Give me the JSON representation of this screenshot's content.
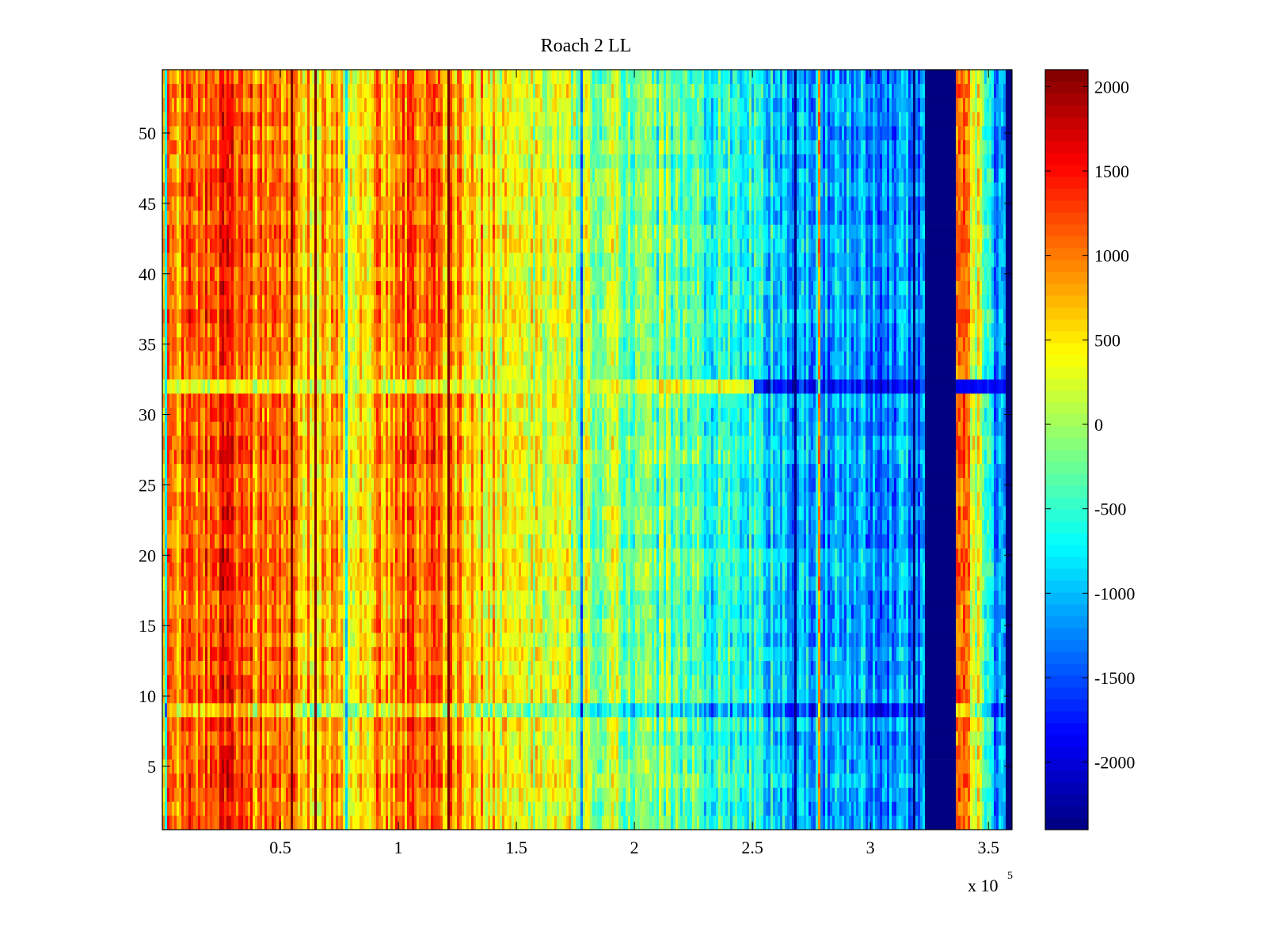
{
  "chart_data": {
    "type": "heatmap",
    "title": "Roach 2 LL",
    "xlabel": "",
    "ylabel": "",
    "x_range": [
      0,
      360000
    ],
    "y_range": [
      0.5,
      54.5
    ],
    "x_ticks": [
      {
        "value": 50000,
        "label": "0.5"
      },
      {
        "value": 100000,
        "label": "1"
      },
      {
        "value": 150000,
        "label": "1.5"
      },
      {
        "value": 200000,
        "label": "2"
      },
      {
        "value": 250000,
        "label": "2.5"
      },
      {
        "value": 300000,
        "label": "3"
      },
      {
        "value": 350000,
        "label": "3.5"
      }
    ],
    "x_exponent_label": "x 10",
    "x_exponent_power": "5",
    "y_ticks": [
      {
        "value": 5,
        "label": "5"
      },
      {
        "value": 10,
        "label": "10"
      },
      {
        "value": 15,
        "label": "15"
      },
      {
        "value": 20,
        "label": "20"
      },
      {
        "value": 25,
        "label": "25"
      },
      {
        "value": 30,
        "label": "30"
      },
      {
        "value": 35,
        "label": "35"
      },
      {
        "value": 40,
        "label": "40"
      },
      {
        "value": 45,
        "label": "45"
      },
      {
        "value": 50,
        "label": "50"
      }
    ],
    "colormap": "jet",
    "color_range": [
      -2400,
      2100
    ],
    "colorbar_ticks": [
      {
        "value": 2000,
        "label": "2000"
      },
      {
        "value": 1500,
        "label": "1500"
      },
      {
        "value": 1000,
        "label": "1000"
      },
      {
        "value": 500,
        "label": "500"
      },
      {
        "value": 0,
        "label": "0"
      },
      {
        "value": -500,
        "label": "-500"
      },
      {
        "value": -1000,
        "label": "-1000"
      },
      {
        "value": -1500,
        "label": "-1500"
      },
      {
        "value": -2000,
        "label": "-2000"
      }
    ],
    "column_profile": {
      "x": [
        0,
        15000,
        25000,
        40000,
        60000,
        80000,
        95000,
        110000,
        130000,
        150000,
        175000,
        200000,
        220000,
        250000,
        270000,
        290000,
        315000,
        320000
      ],
      "value": [
        800,
        1200,
        1300,
        1000,
        700,
        600,
        900,
        1150,
        700,
        450,
        150,
        -100,
        -400,
        -700,
        -1050,
        -1100,
        -1200,
        -1300
      ]
    },
    "saturated_band": {
      "x_start": 323000,
      "x_end": 336000,
      "value": -2400
    },
    "right_segment": {
      "x_start": 336000,
      "x_end": 357000,
      "column_values": [
        1100,
        200,
        -700,
        -1300
      ]
    },
    "right_edge_band": {
      "x_start": 357000,
      "x_end": 360000,
      "value": -2400
    },
    "anomaly_rows": [
      {
        "row": 32,
        "left_value": 300,
        "right_value": -1800
      },
      {
        "row": 9,
        "value_shift": -600
      }
    ]
  }
}
